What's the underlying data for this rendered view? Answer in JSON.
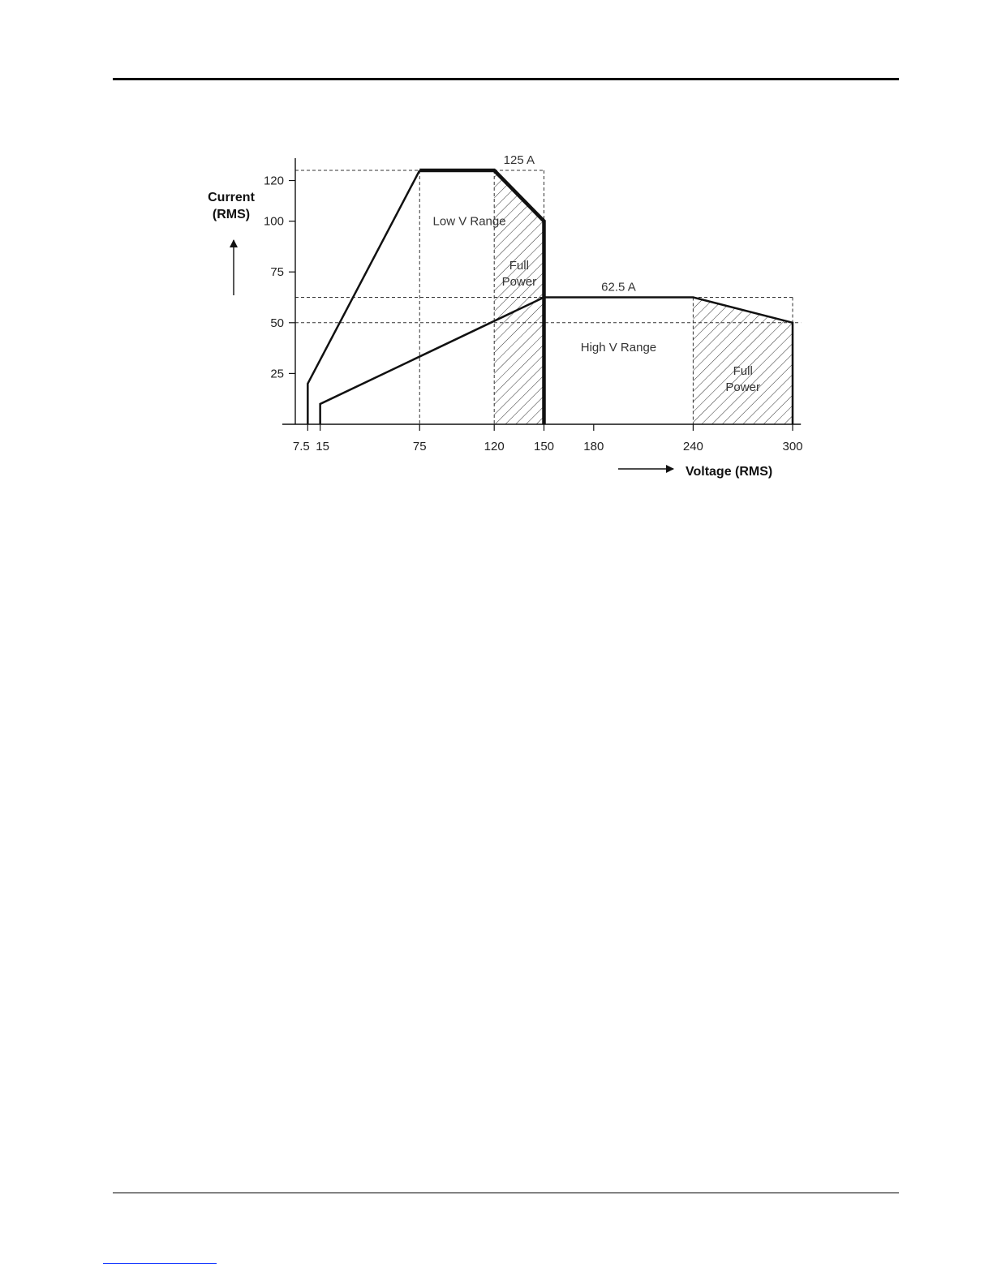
{
  "chart_data": {
    "type": "line",
    "title": "",
    "xlabel": "Voltage (RMS)",
    "ylabel_lines": [
      "Current",
      "(RMS)"
    ],
    "x_ticks": [
      7.5,
      15,
      75,
      120,
      150,
      180,
      240,
      300
    ],
    "x_tick_labels": [
      "7.5",
      "15",
      "75",
      "120",
      "150",
      "180",
      "240",
      "300"
    ],
    "y_ticks": [
      25,
      50,
      75,
      100,
      120
    ],
    "y_tick_labels": [
      "25",
      "50",
      "75",
      "100",
      "120"
    ],
    "xlim": [
      0,
      305
    ],
    "ylim": [
      0,
      128
    ],
    "series": [
      {
        "range": "low",
        "x": [
          7.5,
          7.5,
          75,
          120,
          150,
          150
        ],
        "y": [
          0,
          20,
          125,
          125,
          100,
          0
        ]
      },
      {
        "range": "high",
        "x": [
          15,
          15,
          150,
          240,
          300,
          300
        ],
        "y": [
          0,
          10,
          62.5,
          62.5,
          50,
          0
        ]
      }
    ],
    "reference_lines": {
      "horizontal": [
        125,
        62.5,
        50
      ],
      "vertical": [
        75,
        120,
        150,
        240,
        300
      ]
    },
    "shaded_regions": [
      {
        "x": [
          120,
          150
        ],
        "label_lines": [
          "Full",
          "Power"
        ]
      },
      {
        "x": [
          240,
          300
        ],
        "label_lines": [
          "Full",
          "Power"
        ]
      }
    ],
    "annotations": [
      {
        "text": "125 A",
        "x": 135,
        "y": 125
      },
      {
        "text": "62.5 A",
        "x": 195,
        "y": 62.5
      },
      {
        "text": "Low V Range",
        "x": 105,
        "y": 100
      },
      {
        "text": "High V Range",
        "x": 195,
        "y": 38
      }
    ],
    "grid": false,
    "legend": "none"
  }
}
